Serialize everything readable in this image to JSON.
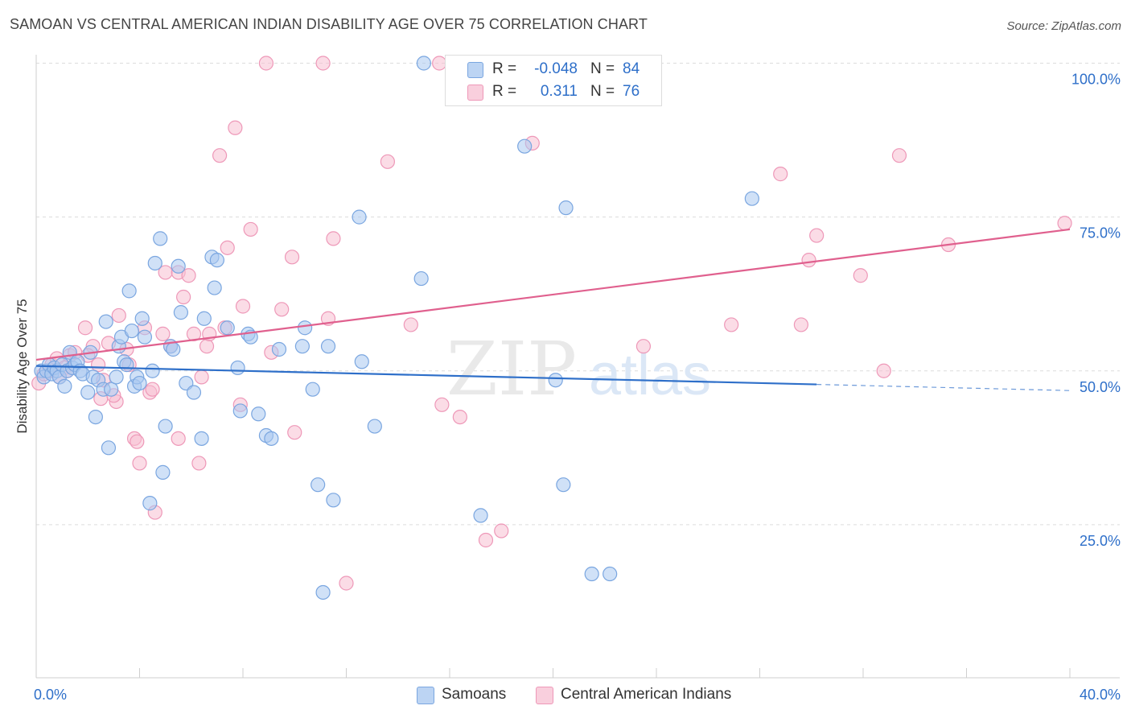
{
  "title": "SAMOAN VS CENTRAL AMERICAN INDIAN DISABILITY AGE OVER 75 CORRELATION CHART",
  "source": "Source: ZipAtlas.com",
  "watermark": {
    "zip": "ZIP",
    "atlas": "atlas"
  },
  "legend": {
    "samoans": {
      "r_label": "R =",
      "r_value": "-0.048",
      "n_label": "N =",
      "n_value": "84"
    },
    "central_american_indians": {
      "r_label": "R =",
      "r_value": "0.311",
      "n_label": "N =",
      "n_value": "76"
    }
  },
  "bottom_legend": {
    "samoans": "Samoans",
    "central_american_indians": "Central American Indians"
  },
  "colors": {
    "samoans_fill": "#a9c8f0",
    "samoans_stroke": "#7aa6e0",
    "samoans_line": "#2e6fc9",
    "cai_fill": "#f7bfd2",
    "cai_stroke": "#ee98b8",
    "cai_line": "#e0608e",
    "axis_text": "#2e6fc9"
  },
  "chart_data": {
    "type": "scatter",
    "title": "SAMOAN VS CENTRAL AMERICAN INDIAN DISABILITY AGE OVER 75 CORRELATION CHART",
    "xlabel": "",
    "ylabel": "Disability Age Over 75",
    "xlim": [
      0,
      40
    ],
    "ylim": [
      0,
      102
    ],
    "x_tick_labels": [
      "0.0%",
      "40.0%"
    ],
    "y_tick_values": [
      25,
      50,
      75,
      100
    ],
    "y_tick_labels": [
      "25.0%",
      "50.0%",
      "75.0%",
      "100.0%"
    ],
    "grid": true,
    "legend_position": "top-center",
    "series": [
      {
        "name": "Samoans",
        "trend": {
          "x": [
            0,
            30.2
          ],
          "y": [
            50.8,
            47.8
          ],
          "dashed_to_x": 40,
          "dashed_end_y": 46.8
        },
        "points": [
          [
            0.2,
            50
          ],
          [
            0.3,
            49
          ],
          [
            0.4,
            50
          ],
          [
            0.5,
            51
          ],
          [
            0.6,
            49.5
          ],
          [
            0.7,
            50.5
          ],
          [
            0.8,
            50
          ],
          [
            0.9,
            49
          ],
          [
            1.0,
            51
          ],
          [
            1.1,
            47.5
          ],
          [
            1.2,
            50
          ],
          [
            1.3,
            53
          ],
          [
            1.4,
            50.5
          ],
          [
            1.5,
            51
          ],
          [
            1.6,
            51.5
          ],
          [
            1.7,
            50
          ],
          [
            1.8,
            49.5
          ],
          [
            2.0,
            46.5
          ],
          [
            2.1,
            53
          ],
          [
            2.2,
            49
          ],
          [
            2.3,
            42.5
          ],
          [
            2.4,
            48.5
          ],
          [
            2.6,
            47
          ],
          [
            2.7,
            58
          ],
          [
            2.8,
            37.5
          ],
          [
            2.9,
            47
          ],
          [
            3.1,
            49
          ],
          [
            3.2,
            54
          ],
          [
            3.3,
            55.5
          ],
          [
            3.4,
            51.5
          ],
          [
            3.5,
            51
          ],
          [
            3.6,
            63
          ],
          [
            3.7,
            56.5
          ],
          [
            3.8,
            47.5
          ],
          [
            3.9,
            49
          ],
          [
            4.0,
            48
          ],
          [
            4.1,
            58.5
          ],
          [
            4.2,
            55.5
          ],
          [
            4.4,
            28.5
          ],
          [
            4.5,
            50
          ],
          [
            4.8,
            71.5
          ],
          [
            4.9,
            33.5
          ],
          [
            5.0,
            41
          ],
          [
            5.2,
            54
          ],
          [
            5.3,
            53.5
          ],
          [
            5.5,
            67
          ],
          [
            5.6,
            59.5
          ],
          [
            5.8,
            48
          ],
          [
            6.1,
            46.5
          ],
          [
            6.4,
            39
          ],
          [
            6.5,
            58.5
          ],
          [
            6.8,
            68.5
          ],
          [
            6.9,
            63.5
          ],
          [
            7.0,
            68
          ],
          [
            7.4,
            57
          ],
          [
            7.8,
            50.5
          ],
          [
            7.9,
            43.5
          ],
          [
            8.2,
            56
          ],
          [
            8.3,
            55.5
          ],
          [
            8.6,
            43
          ],
          [
            8.9,
            39.5
          ],
          [
            9.1,
            39
          ],
          [
            9.4,
            53.5
          ],
          [
            10.3,
            54
          ],
          [
            10.4,
            57
          ],
          [
            10.7,
            47
          ],
          [
            10.9,
            31.5
          ],
          [
            11.1,
            14
          ],
          [
            11.3,
            54
          ],
          [
            11.5,
            29
          ],
          [
            12.6,
            51.5
          ],
          [
            12.5,
            75
          ],
          [
            13.1,
            41
          ],
          [
            14.9,
            65
          ],
          [
            15.0,
            100
          ],
          [
            17.2,
            26.5
          ],
          [
            18.9,
            86.5
          ],
          [
            20.1,
            48.5
          ],
          [
            20.5,
            76.5
          ],
          [
            20.4,
            31.5
          ],
          [
            21.5,
            17
          ],
          [
            22.2,
            17
          ],
          [
            27.7,
            78
          ],
          [
            4.6,
            67.5
          ]
        ]
      },
      {
        "name": "Central American Indians",
        "trend": {
          "x": [
            0,
            40
          ],
          "y": [
            51.8,
            73
          ]
        },
        "points": [
          [
            0.1,
            48
          ],
          [
            0.3,
            49.5
          ],
          [
            0.5,
            50
          ],
          [
            0.6,
            51
          ],
          [
            0.8,
            52
          ],
          [
            0.9,
            49
          ],
          [
            1.1,
            50.5
          ],
          [
            1.3,
            52.5
          ],
          [
            1.5,
            53
          ],
          [
            1.9,
            57
          ],
          [
            2.2,
            54
          ],
          [
            2.4,
            51
          ],
          [
            2.5,
            45.5
          ],
          [
            2.6,
            48.5
          ],
          [
            2.8,
            54.5
          ],
          [
            3.1,
            45
          ],
          [
            3.2,
            59
          ],
          [
            3.5,
            53.5
          ],
          [
            3.6,
            51
          ],
          [
            3.8,
            39
          ],
          [
            3.9,
            38.5
          ],
          [
            4.0,
            35
          ],
          [
            4.2,
            57
          ],
          [
            4.4,
            46.5
          ],
          [
            4.5,
            47
          ],
          [
            4.6,
            27
          ],
          [
            4.9,
            56
          ],
          [
            5.0,
            66
          ],
          [
            5.2,
            54
          ],
          [
            5.5,
            66
          ],
          [
            5.5,
            39
          ],
          [
            5.7,
            62
          ],
          [
            5.9,
            65.5
          ],
          [
            6.1,
            56
          ],
          [
            6.3,
            35
          ],
          [
            6.4,
            49
          ],
          [
            6.6,
            54
          ],
          [
            6.7,
            56
          ],
          [
            7.1,
            85
          ],
          [
            7.3,
            57
          ],
          [
            7.4,
            70
          ],
          [
            7.7,
            89.5
          ],
          [
            7.9,
            44.5
          ],
          [
            8.0,
            60.5
          ],
          [
            8.3,
            73
          ],
          [
            8.9,
            100
          ],
          [
            9.1,
            53
          ],
          [
            9.5,
            60
          ],
          [
            9.9,
            68.5
          ],
          [
            10.0,
            40
          ],
          [
            11.1,
            100
          ],
          [
            11.3,
            58.5
          ],
          [
            11.5,
            71.5
          ],
          [
            13.6,
            84
          ],
          [
            14.5,
            57.5
          ],
          [
            15.7,
            44.5
          ],
          [
            15.6,
            100
          ],
          [
            16.4,
            42.5
          ],
          [
            17.4,
            22.5
          ],
          [
            18.0,
            24
          ],
          [
            19.2,
            87
          ],
          [
            12.0,
            15.5
          ],
          [
            23.5,
            54
          ],
          [
            26.9,
            57.5
          ],
          [
            28.8,
            82
          ],
          [
            29.6,
            57.5
          ],
          [
            29.9,
            68
          ],
          [
            30.2,
            72
          ],
          [
            31.9,
            65.5
          ],
          [
            32.8,
            50
          ],
          [
            33.4,
            85
          ],
          [
            35.3,
            70.5
          ],
          [
            39.8,
            74
          ],
          [
            1.2,
            50
          ],
          [
            2.0,
            52.5
          ],
          [
            3.0,
            46
          ]
        ]
      }
    ]
  }
}
